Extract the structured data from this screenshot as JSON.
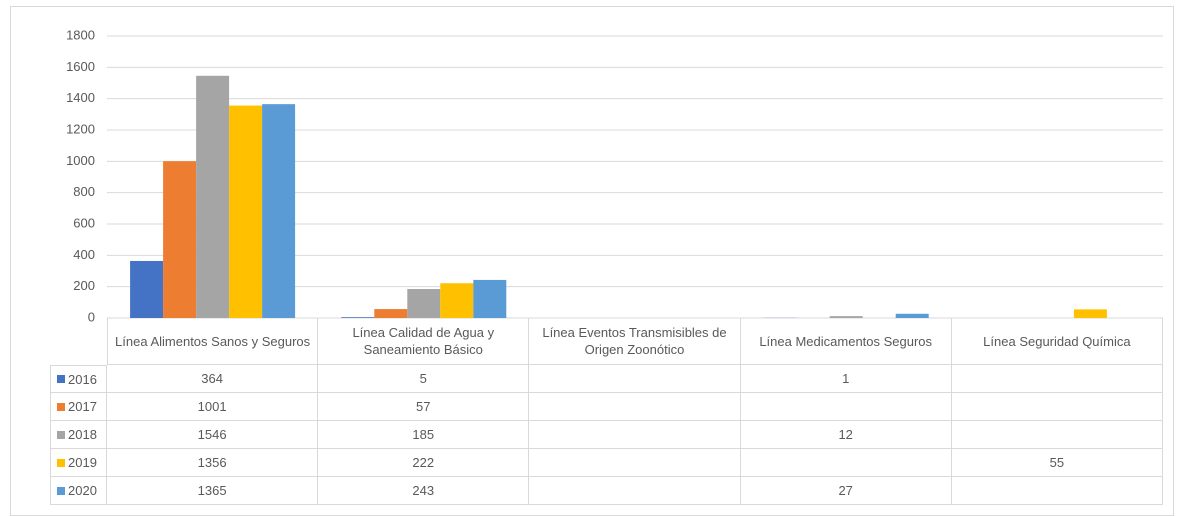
{
  "chart_data": {
    "type": "bar",
    "categories": [
      "Línea Alimentos Sanos y Seguros",
      "Línea Calidad de Agua y Saneamiento Básico",
      "Línea Eventos Transmisibles de Origen Zoonótico",
      "Línea Medicamentos Seguros",
      "Línea Seguridad Química"
    ],
    "series": [
      {
        "name": "2016",
        "color": "#4472c4",
        "values": [
          364,
          5,
          null,
          1,
          null
        ]
      },
      {
        "name": "2017",
        "color": "#ed7d31",
        "values": [
          1001,
          57,
          null,
          null,
          null
        ]
      },
      {
        "name": "2018",
        "color": "#a5a5a5",
        "values": [
          1546,
          185,
          null,
          12,
          null
        ]
      },
      {
        "name": "2019",
        "color": "#ffc000",
        "values": [
          1356,
          222,
          null,
          null,
          55
        ]
      },
      {
        "name": "2020",
        "color": "#5b9bd5",
        "values": [
          1365,
          243,
          null,
          27,
          null
        ]
      }
    ],
    "ylim": [
      0,
      1800
    ],
    "yticks": [
      0,
      200,
      400,
      600,
      800,
      1000,
      1200,
      1400,
      1600,
      1800
    ],
    "grid": true,
    "data_table": true
  }
}
